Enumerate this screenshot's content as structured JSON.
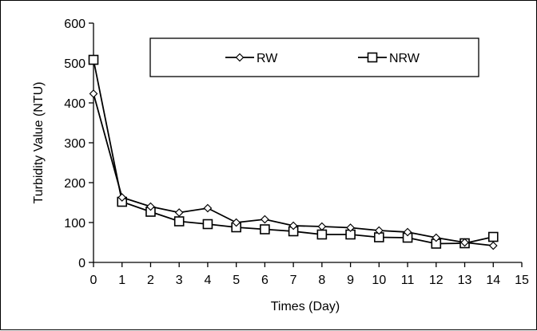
{
  "chart_data": {
    "type": "line",
    "xlabel": "Times (Day)",
    "ylabel": "Turbidity Value (NTU)",
    "xlim": [
      0,
      15
    ],
    "ylim": [
      0,
      600
    ],
    "x_ticks": [
      0,
      1,
      2,
      3,
      4,
      5,
      6,
      7,
      8,
      9,
      10,
      11,
      12,
      13,
      14,
      15
    ],
    "y_ticks": [
      0,
      100,
      200,
      300,
      400,
      500,
      600
    ],
    "grid": false,
    "legend_position": "top-center, boxed",
    "x": [
      0,
      1,
      2,
      3,
      4,
      5,
      6,
      7,
      8,
      9,
      10,
      11,
      12,
      13,
      14
    ],
    "series": [
      {
        "name": "RW",
        "marker": "diamond",
        "color": "#000000",
        "values": [
          423,
          163,
          140,
          125,
          136,
          100,
          108,
          92,
          90,
          87,
          80,
          76,
          62,
          50,
          42
        ]
      },
      {
        "name": "NRW",
        "marker": "square",
        "color": "#000000",
        "values": [
          508,
          152,
          127,
          103,
          96,
          88,
          83,
          78,
          70,
          70,
          63,
          62,
          47,
          48,
          64
        ]
      }
    ]
  }
}
